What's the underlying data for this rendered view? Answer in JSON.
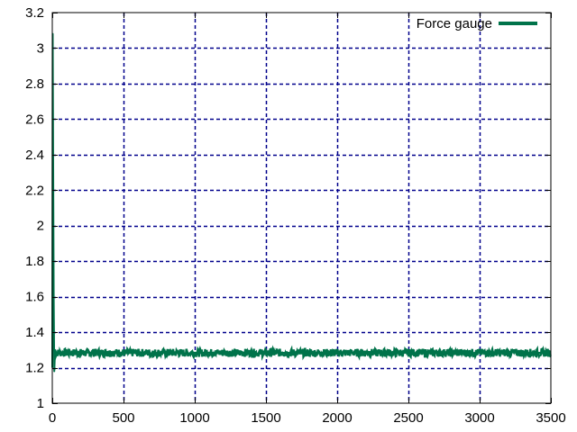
{
  "chart_data": {
    "type": "line",
    "title": "",
    "xlabel": "",
    "ylabel": "",
    "xlim": [
      0,
      3500
    ],
    "ylim": [
      1,
      3.2
    ],
    "x_ticks": [
      0,
      500,
      1000,
      1500,
      2000,
      2500,
      3000,
      3500
    ],
    "y_ticks": [
      1,
      1.2,
      1.4,
      1.6,
      1.8,
      2,
      2.2,
      2.4,
      2.6,
      2.8,
      3,
      3.2
    ],
    "grid": true,
    "legend_position": "top-right",
    "series": [
      {
        "name": "Force gauge",
        "color": "#00734a",
        "x": [
          0,
          3,
          6,
          10,
          14,
          20,
          30,
          50,
          100,
          200,
          300,
          400,
          500,
          600,
          700,
          800,
          900,
          1000,
          1100,
          1200,
          1300,
          1400,
          1500,
          1600,
          1700,
          1800,
          1900,
          2000,
          2100,
          2200,
          2300,
          2400,
          2500,
          2600,
          2700,
          2800,
          2900,
          3000,
          3100,
          3200,
          3300,
          3400,
          3500
        ],
        "y": [
          1.2,
          3.08,
          2.4,
          1.6,
          1.18,
          1.3,
          1.28,
          1.29,
          1.28,
          1.29,
          1.28,
          1.29,
          1.28,
          1.285,
          1.28,
          1.29,
          1.28,
          1.28,
          1.285,
          1.28,
          1.29,
          1.28,
          1.28,
          1.285,
          1.28,
          1.28,
          1.285,
          1.28,
          1.285,
          1.29,
          1.285,
          1.28,
          1.285,
          1.28,
          1.29,
          1.285,
          1.28,
          1.285,
          1.28,
          1.29,
          1.28,
          1.285,
          1.28
        ]
      }
    ]
  }
}
